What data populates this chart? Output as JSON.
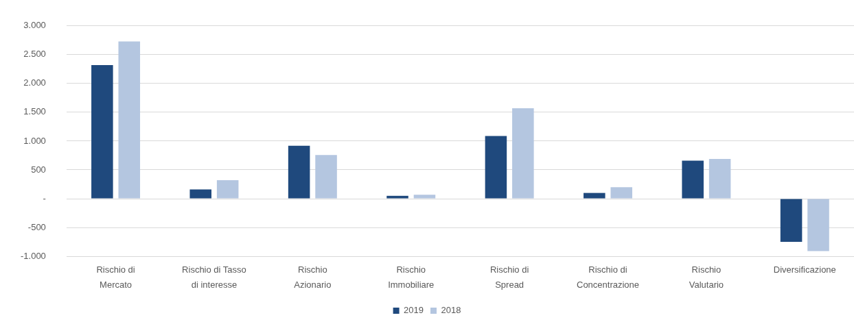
{
  "chart_data": {
    "type": "bar",
    "categories": [
      "Rischio di\nMercato",
      "Rischio di Tasso\ndi interesse",
      "Rischio\nAzionario",
      "Rischio\nImmobiliare",
      "Rischio di\nSpread",
      "Rischio di\nConcentrazione",
      "Rischio\nValutario",
      "Diversificazione"
    ],
    "series": [
      {
        "name": "2019",
        "color": "#1f497d",
        "values": [
          2320,
          160,
          920,
          50,
          1090,
          100,
          660,
          -750
        ]
      },
      {
        "name": "2018",
        "color": "#b4c6e0",
        "values": [
          2730,
          320,
          760,
          70,
          1570,
          200,
          690,
          -910
        ]
      }
    ],
    "ylim": [
      -1000,
      3000
    ],
    "yticks": [
      {
        "value": -1000,
        "label": "-1.000"
      },
      -500,
      {
        "value": 0,
        "label": "-"
      },
      500,
      {
        "value": 1000,
        "label": "1.000"
      },
      {
        "value": 1500,
        "label": "1.500"
      },
      {
        "value": 2000,
        "label": "2.000"
      },
      {
        "value": 2500,
        "label": "2.500"
      },
      {
        "value": 3000,
        "label": "3.000"
      }
    ],
    "grid": "y",
    "legend": "bottom"
  }
}
